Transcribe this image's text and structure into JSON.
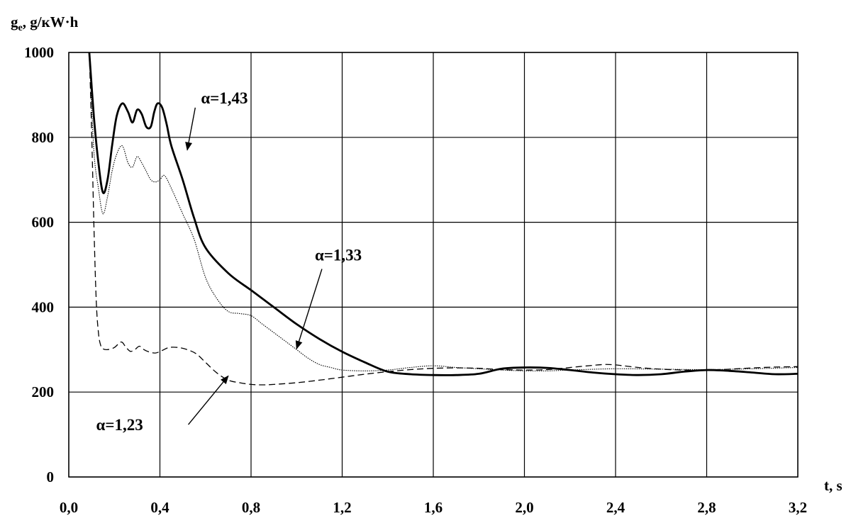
{
  "chart_data": {
    "type": "line",
    "ylabel": "g",
    "ylabel_sub": "e",
    "ylabel_units": ", g/кW·h",
    "xlabel": "t, s",
    "xlim": [
      0,
      3.2
    ],
    "ylim": [
      0,
      1000
    ],
    "grid": true,
    "x_ticks": [
      0.0,
      0.4,
      0.8,
      1.2,
      1.6,
      2.0,
      2.4,
      2.8,
      3.2
    ],
    "x_tick_labels": [
      "0,0",
      "0,4",
      "0,8",
      "1,2",
      "1,6",
      "2,0",
      "2,4",
      "2,8",
      "3,2"
    ],
    "y_ticks": [
      0,
      200,
      400,
      600,
      800,
      1000
    ],
    "y_tick_labels": [
      "0",
      "200",
      "400",
      "600",
      "800",
      "1000"
    ],
    "series": [
      {
        "name": "α=1,43",
        "style": "solid",
        "x": [
          0.09,
          0.11,
          0.13,
          0.15,
          0.17,
          0.19,
          0.21,
          0.235,
          0.26,
          0.28,
          0.3,
          0.32,
          0.34,
          0.36,
          0.375,
          0.39,
          0.41,
          0.43,
          0.45,
          0.5,
          0.55,
          0.6,
          0.7,
          0.8,
          0.9,
          1.0,
          1.1,
          1.2,
          1.3,
          1.4,
          1.5,
          1.6,
          1.7,
          1.8,
          1.9,
          2.0,
          2.1,
          2.2,
          2.3,
          2.4,
          2.5,
          2.6,
          2.7,
          2.8,
          2.9,
          3.0,
          3.1,
          3.2
        ],
        "y": [
          1000,
          850,
          740,
          670,
          700,
          780,
          850,
          880,
          860,
          835,
          865,
          855,
          825,
          825,
          860,
          880,
          870,
          830,
          780,
          700,
          610,
          540,
          480,
          440,
          400,
          360,
          325,
          295,
          270,
          248,
          242,
          240,
          240,
          243,
          255,
          258,
          257,
          252,
          246,
          242,
          240,
          242,
          248,
          252,
          250,
          246,
          242,
          243
        ]
      },
      {
        "name": "α=1,33",
        "style": "dotted",
        "x": [
          0.09,
          0.11,
          0.13,
          0.15,
          0.17,
          0.19,
          0.21,
          0.235,
          0.26,
          0.28,
          0.3,
          0.32,
          0.34,
          0.36,
          0.38,
          0.4,
          0.42,
          0.45,
          0.5,
          0.55,
          0.6,
          0.65,
          0.7,
          0.75,
          0.8,
          0.85,
          0.9,
          0.95,
          1.0,
          1.05,
          1.1,
          1.15,
          1.2,
          1.3,
          1.4,
          1.5,
          1.6,
          1.7,
          1.8,
          1.9,
          2.0,
          2.1,
          2.2,
          2.4,
          2.6,
          2.8,
          3.0,
          3.2
        ],
        "y": [
          1000,
          770,
          680,
          620,
          660,
          720,
          760,
          780,
          740,
          730,
          755,
          740,
          720,
          700,
          695,
          700,
          710,
          680,
          620,
          560,
          470,
          420,
          390,
          385,
          380,
          360,
          340,
          320,
          300,
          280,
          265,
          258,
          252,
          250,
          252,
          258,
          262,
          258,
          255,
          252,
          250,
          250,
          252,
          255,
          254,
          253,
          255,
          258
        ]
      },
      {
        "name": "α=1,23",
        "style": "dashed",
        "x": [
          0.09,
          0.1,
          0.11,
          0.12,
          0.13,
          0.14,
          0.15,
          0.17,
          0.2,
          0.23,
          0.25,
          0.27,
          0.29,
          0.31,
          0.33,
          0.35,
          0.38,
          0.41,
          0.44,
          0.48,
          0.52,
          0.56,
          0.6,
          0.65,
          0.7,
          0.75,
          0.8,
          0.85,
          0.9,
          1.0,
          1.1,
          1.2,
          1.3,
          1.4,
          1.5,
          1.6,
          1.7,
          1.8,
          1.9,
          2.0,
          2.1,
          2.2,
          2.3,
          2.35,
          2.4,
          2.5,
          2.6,
          2.7,
          2.8,
          2.9,
          3.0,
          3.1,
          3.2
        ],
        "y": [
          1000,
          820,
          600,
          420,
          340,
          310,
          302,
          300,
          305,
          318,
          306,
          296,
          300,
          308,
          300,
          295,
          292,
          298,
          305,
          305,
          300,
          290,
          270,
          245,
          228,
          222,
          218,
          217,
          218,
          222,
          228,
          235,
          242,
          248,
          253,
          256,
          257,
          256,
          253,
          252,
          253,
          258,
          263,
          265,
          264,
          258,
          254,
          252,
          252,
          254,
          257,
          259,
          260
        ]
      }
    ],
    "annotations": [
      {
        "text": "α=1,43",
        "series": "α=1,43",
        "label_x": 0.58,
        "label_y": 880,
        "arrow_x": 0.52,
        "arrow_y": 770
      },
      {
        "text": "α=1,33",
        "series": "α=1,33",
        "label_x": 1.08,
        "label_y": 510,
        "arrow_x": 1.0,
        "arrow_y": 302
      },
      {
        "text": "α=1,23",
        "series": "α=1,23",
        "label_x": 0.12,
        "label_y": 110,
        "arrow_x": 0.7,
        "arrow_y": 238
      }
    ]
  }
}
